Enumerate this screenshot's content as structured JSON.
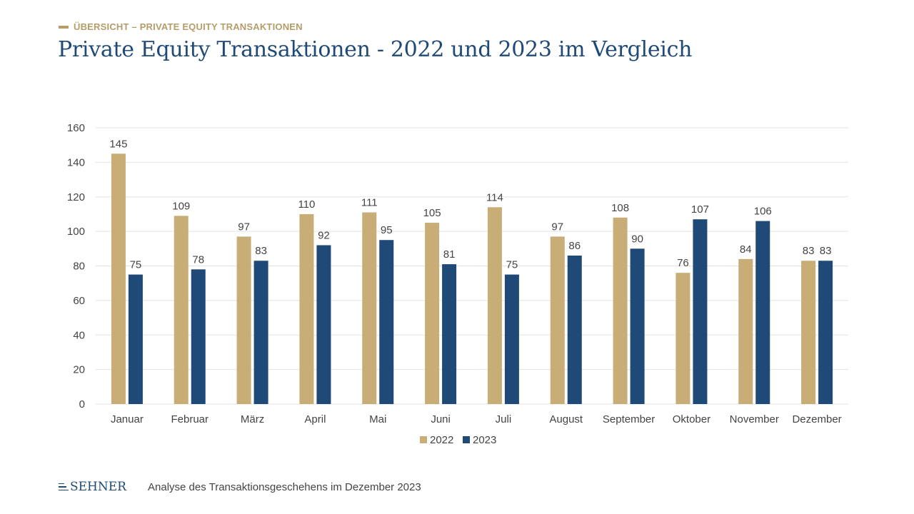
{
  "header": {
    "kicker": "ÜBERSICHT – PRIVATE EQUITY TRANSAKTIONEN",
    "title": "Private Equity Transaktionen - 2022 und 2023 im Vergleich"
  },
  "footer": {
    "logo_text": "SEHNER",
    "caption": "Analyse des Transaktionsgeschehens im Dezember 2023"
  },
  "colors": {
    "series_2022": "#c8ae76",
    "series_2023": "#1f4a78",
    "grid": "#e3e3e3",
    "text": "#444444"
  },
  "chart_data": {
    "type": "bar",
    "categories": [
      "Januar",
      "Februar",
      "März",
      "April",
      "Mai",
      "Juni",
      "Juli",
      "August",
      "September",
      "Oktober",
      "November",
      "Dezember"
    ],
    "series": [
      {
        "name": "2022",
        "values": [
          145,
          109,
          97,
          110,
          111,
          105,
          114,
          97,
          108,
          76,
          84,
          83
        ]
      },
      {
        "name": "2023",
        "values": [
          75,
          78,
          83,
          92,
          95,
          81,
          75,
          86,
          90,
          107,
          106,
          83
        ]
      }
    ],
    "yticks": [
      "0",
      "20",
      "40",
      "60",
      "80",
      "100",
      "120",
      "140",
      "160"
    ],
    "ylim": [
      0,
      160
    ],
    "grid": true,
    "legend": "bottom",
    "data_labels": true
  }
}
